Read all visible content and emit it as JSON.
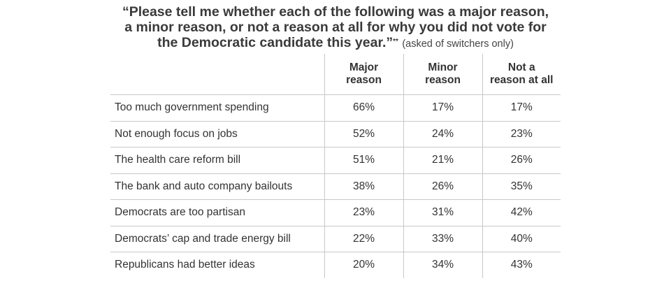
{
  "title": {
    "line1": "“Please tell me whether each of the following was a major reason,",
    "line2": "a minor reason, or not a reason at all for why you did not vote for",
    "line3": "the Democratic candidate this year.”",
    "footnote_mark": "**",
    "note": "(asked of switchers only)"
  },
  "chart_data": {
    "type": "table",
    "columns": [
      {
        "line1": "Major",
        "line2": "reason"
      },
      {
        "line1": "Minor",
        "line2": "reason"
      },
      {
        "line1": "Not a",
        "line2": "reason at all"
      }
    ],
    "rows": [
      {
        "label": "Too much government spending",
        "values": [
          "66%",
          "17%",
          "17%"
        ]
      },
      {
        "label": "Not enough focus on jobs",
        "values": [
          "52%",
          "24%",
          "23%"
        ]
      },
      {
        "label": "The health care reform bill",
        "values": [
          "51%",
          "21%",
          "26%"
        ]
      },
      {
        "label": "The bank and auto company bailouts",
        "values": [
          "38%",
          "26%",
          "35%"
        ]
      },
      {
        "label": "Democrats are too partisan",
        "values": [
          "23%",
          "31%",
          "42%"
        ]
      },
      {
        "label": "Democrats’ cap and trade energy bill",
        "values": [
          "22%",
          "33%",
          "40%"
        ]
      },
      {
        "label": "Republicans had better ideas",
        "values": [
          "20%",
          "34%",
          "43%"
        ]
      }
    ]
  }
}
